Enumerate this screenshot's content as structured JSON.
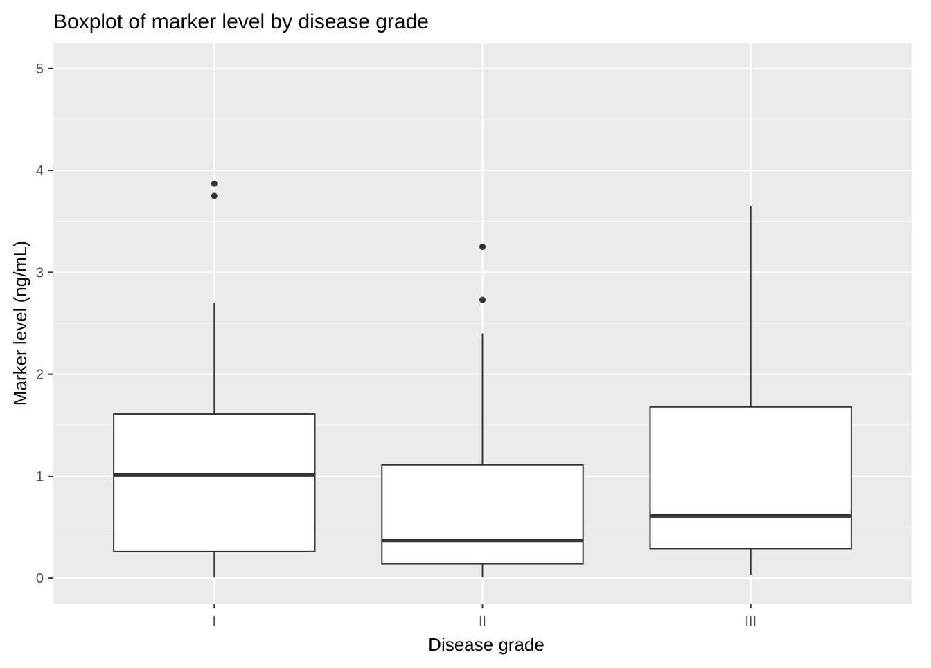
{
  "chart_data": {
    "type": "boxplot",
    "title": "Boxplot of marker level by disease grade",
    "xlabel": "Disease grade",
    "ylabel": "Marker level (ng/mL)",
    "categories": [
      "I",
      "II",
      "III"
    ],
    "ylim": [
      -0.25,
      5.25
    ],
    "yticks": [
      0,
      1,
      2,
      3,
      4,
      5
    ],
    "ytick_labels": [
      "0",
      "1",
      "2",
      "3",
      "4",
      "5"
    ],
    "grid": true,
    "legend": "none",
    "boxes": [
      {
        "category": "I",
        "whisker_low": 0.01,
        "q1": 0.26,
        "median": 1.01,
        "q3": 1.61,
        "whisker_high": 2.7,
        "outliers": [
          3.75,
          3.87
        ]
      },
      {
        "category": "II",
        "whisker_low": 0.01,
        "q1": 0.14,
        "median": 0.37,
        "q3": 1.11,
        "whisker_high": 2.4,
        "outliers": [
          2.73,
          3.25
        ]
      },
      {
        "category": "III",
        "whisker_low": 0.03,
        "q1": 0.29,
        "median": 0.61,
        "q3": 1.68,
        "whisker_high": 3.65,
        "outliers": []
      }
    ],
    "colors": {
      "panel_background": "#ebebeb",
      "grid_major": "#ffffff",
      "grid_minor": "#f5f5f5",
      "box_fill": "#ffffff",
      "box_line": "#333333",
      "tick_text": "#4d4d4d",
      "tick_mark": "#333333"
    }
  }
}
